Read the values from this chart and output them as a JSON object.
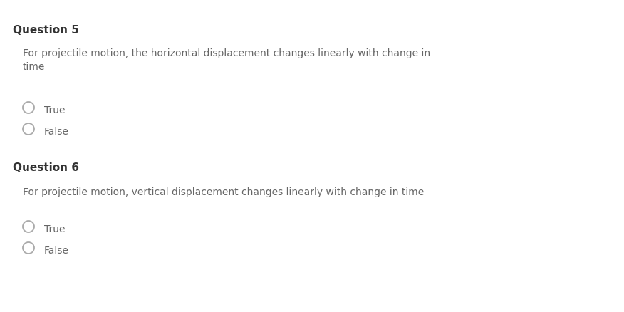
{
  "background_color": "#ffffff",
  "q5_title": "Question 5",
  "q5_body": "For projectile motion, the horizontal displacement changes linearly with change in\ntime",
  "q5_options": [
    "True",
    "False"
  ],
  "q6_title": "Question 6",
  "q6_body": "For projectile motion, vertical displacement changes linearly with change in time",
  "q6_options": [
    "True",
    "False"
  ],
  "title_color": "#333333",
  "body_color": "#666666",
  "option_color": "#666666",
  "circle_edge_color": "#aaaaaa",
  "circle_fill_color": "#ffffff",
  "title_fontsize": 11.0,
  "body_fontsize": 10.0,
  "option_fontsize": 10.0,
  "fig_width": 8.76,
  "fig_height": 4.39,
  "dpi": 100
}
